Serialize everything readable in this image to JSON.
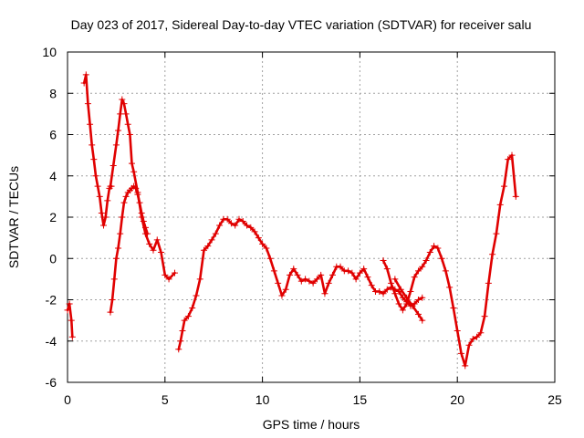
{
  "chart_data": {
    "type": "scatter",
    "title": "Day 023 of 2017, Sidereal Day-to-day VTEC variation (SDTVAR) for receiver salu",
    "xlabel": "GPS time / hours",
    "ylabel": "SDTVAR / TECUs",
    "xlim": [
      0,
      25
    ],
    "ylim": [
      -6,
      10
    ],
    "xticks": [
      0,
      5,
      10,
      15,
      20,
      25
    ],
    "yticks": [
      -6,
      -4,
      -2,
      0,
      2,
      4,
      6,
      8,
      10
    ],
    "grid": true,
    "marker": "+",
    "color": "#e00000",
    "series": [
      {
        "name": "seg1",
        "x": [
          0.0,
          0.1,
          0.2,
          0.25
        ],
        "y": [
          -2.5,
          -2.2,
          -3.0,
          -3.8
        ]
      },
      {
        "name": "seg2",
        "x": [
          0.85,
          0.95,
          1.05,
          1.15,
          1.25,
          1.35,
          1.45,
          1.55,
          1.65,
          1.75,
          1.85,
          1.95,
          2.05,
          2.15,
          2.25
        ],
        "y": [
          8.5,
          8.9,
          7.5,
          6.5,
          5.5,
          4.8,
          4.0,
          3.5,
          3.0,
          2.2,
          1.6,
          2.0,
          2.8,
          3.4,
          3.5
        ]
      },
      {
        "name": "seg3",
        "x": [
          2.2,
          2.3,
          2.4,
          2.5,
          2.6,
          2.7,
          2.8,
          2.9,
          3.0,
          3.1,
          3.2,
          3.3,
          3.4,
          3.5,
          3.6,
          3.7,
          3.8,
          3.9,
          4.0,
          4.1
        ],
        "y": [
          -2.6,
          -2.0,
          -1.0,
          0.0,
          0.5,
          1.2,
          2.0,
          2.7,
          3.0,
          3.2,
          3.3,
          3.4,
          3.5,
          3.4,
          3.1,
          2.7,
          2.2,
          1.8,
          1.5,
          1.2
        ]
      },
      {
        "name": "seg4",
        "x": [
          2.2,
          2.35,
          2.5,
          2.6,
          2.7,
          2.8,
          2.9,
          3.0,
          3.1,
          3.2,
          3.3,
          3.4,
          3.6,
          3.8,
          4.0,
          4.2,
          4.4,
          4.6,
          4.8,
          5.0,
          5.2,
          5.5
        ],
        "y": [
          3.5,
          4.5,
          5.5,
          6.2,
          7.0,
          7.7,
          7.5,
          7.0,
          6.5,
          6.0,
          4.6,
          4.2,
          3.2,
          2.0,
          1.2,
          0.7,
          0.4,
          0.9,
          0.3,
          -0.8,
          -1.0,
          -0.7
        ]
      },
      {
        "name": "seg5",
        "x": [
          5.7,
          5.8,
          5.9,
          6.0,
          6.2,
          6.4,
          6.6,
          6.8,
          7.0,
          7.2,
          7.4,
          7.6,
          7.8,
          8.0,
          8.2,
          8.4,
          8.6,
          8.8,
          9.0,
          9.2,
          9.4,
          9.6,
          9.8,
          10.0,
          10.2,
          10.4,
          10.6,
          10.8,
          11.0,
          11.2,
          11.4,
          11.6,
          11.8,
          12.0,
          12.2,
          12.4,
          12.6,
          12.8,
          13.0,
          13.2,
          13.4,
          13.6,
          13.8,
          14.0,
          14.2,
          14.4,
          14.6,
          14.8,
          15.0,
          15.2,
          15.4,
          15.6,
          15.8,
          16.0,
          16.2,
          16.4,
          16.6,
          16.8,
          17.0,
          17.2,
          17.4,
          17.6,
          17.8,
          18.0,
          18.2
        ],
        "y": [
          -4.4,
          -4.0,
          -3.5,
          -3.0,
          -2.8,
          -2.4,
          -1.8,
          -1.0,
          0.4,
          0.6,
          0.9,
          1.2,
          1.6,
          1.9,
          1.9,
          1.7,
          1.6,
          1.9,
          1.8,
          1.6,
          1.5,
          1.3,
          1.0,
          0.7,
          0.5,
          0.0,
          -0.6,
          -1.2,
          -1.8,
          -1.5,
          -0.8,
          -0.5,
          -0.8,
          -1.1,
          -1.0,
          -1.1,
          -1.2,
          -1.0,
          -0.8,
          -1.7,
          -1.2,
          -0.8,
          -0.4,
          -0.4,
          -0.6,
          -0.6,
          -0.7,
          -1.0,
          -0.7,
          -0.5,
          -0.9,
          -1.3,
          -1.6,
          -1.6,
          -1.7,
          -1.5,
          -1.4,
          -1.5,
          -1.6,
          -1.9,
          -2.1,
          -2.3,
          -2.2,
          -2.0,
          -1.9
        ]
      },
      {
        "name": "seg6",
        "x": [
          16.2,
          16.4,
          16.6,
          16.8,
          17.0,
          17.2,
          17.4,
          17.6,
          17.8,
          18.0,
          18.2,
          18.4,
          18.6,
          18.8,
          19.0,
          19.2,
          19.4,
          19.6,
          19.8,
          20.0,
          20.2,
          20.4,
          20.6,
          20.8,
          21.0,
          21.2,
          21.4,
          21.6,
          21.8,
          22.0,
          22.2,
          22.4,
          22.6,
          22.8,
          23.0
        ],
        "y": [
          -0.1,
          -0.5,
          -1.2,
          -1.7,
          -2.2,
          -2.5,
          -2.2,
          -1.6,
          -0.9,
          -0.6,
          -0.4,
          -0.1,
          0.3,
          0.6,
          0.5,
          0.0,
          -0.6,
          -1.4,
          -2.4,
          -3.5,
          -4.6,
          -5.2,
          -4.2,
          -3.9,
          -3.8,
          -3.6,
          -2.8,
          -1.2,
          0.2,
          1.2,
          2.6,
          3.5,
          4.8,
          5.0,
          3.0
        ]
      },
      {
        "name": "seg7",
        "x": [
          16.8,
          17.1,
          17.4,
          17.7,
          18.0,
          18.2
        ],
        "y": [
          -1.0,
          -1.5,
          -1.9,
          -2.3,
          -2.7,
          -3.0
        ]
      }
    ]
  }
}
